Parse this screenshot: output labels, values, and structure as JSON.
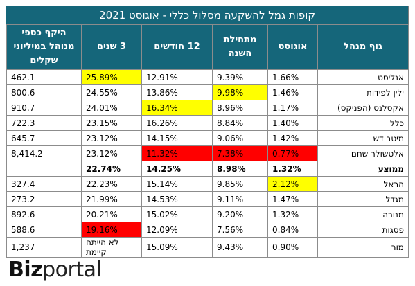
{
  "chart_data": {
    "type": "table",
    "title": "קופות גמל להשקעה מסלול כללי - אוגוסט 2021",
    "columns": [
      "גוף מנהל",
      "אוגוסט",
      "מתחילת השנה",
      "12 חודשים",
      "3 שנים",
      "היקף כספי מנוהל במיליוני שקלים"
    ],
    "rows": [
      {
        "name": "אנליסט",
        "aug": "1.66%",
        "ytd": "9.39%",
        "m12": "12.91%",
        "y3": "25.89%",
        "aum": "462.1",
        "hl": {
          "y3": "yellow"
        }
      },
      {
        "name": "ילין לפידות",
        "aug": "1.46%",
        "ytd": "9.98%",
        "m12": "13.86%",
        "y3": "24.55%",
        "aum": "800.6",
        "hl": {
          "ytd": "yellow"
        }
      },
      {
        "name": "אקסלנס (הפניקס)",
        "aug": "1.17%",
        "ytd": "8.96%",
        "m12": "16.34%",
        "y3": "24.01%",
        "aum": "910.7",
        "hl": {
          "m12": "yellow"
        }
      },
      {
        "name": "כלל",
        "aug": "1.40%",
        "ytd": "8.84%",
        "m12": "16.26%",
        "y3": "23.15%",
        "aum": "722.3",
        "hl": {}
      },
      {
        "name": "מיטב דש",
        "aug": "1.42%",
        "ytd": "9.06%",
        "m12": "14.15%",
        "y3": "23.12%",
        "aum": "645.7",
        "hl": {}
      },
      {
        "name": "אלטשולר שחם",
        "aug": "0.77%",
        "ytd": "7.38%",
        "m12": "11.32%",
        "y3": "23.12%",
        "aum": "8,414.2",
        "hl": {
          "aug": "red",
          "ytd": "red",
          "m12": "red"
        }
      },
      {
        "name": "ממוצע",
        "aug": "1.32%",
        "ytd": "8.98%",
        "m12": "14.25%",
        "y3": "22.74%",
        "aum": "",
        "bold": true,
        "hl": {}
      },
      {
        "name": "הראל",
        "aug": "2.12%",
        "ytd": "9.85%",
        "m12": "15.14%",
        "y3": "22.23%",
        "aum": "327.4",
        "hl": {
          "aug": "yellow"
        }
      },
      {
        "name": "מגדל",
        "aug": "1.47%",
        "ytd": "9.11%",
        "m12": "14.53%",
        "y3": "21.99%",
        "aum": "273.2",
        "hl": {}
      },
      {
        "name": "מנורה",
        "aug": "1.32%",
        "ytd": "9.20%",
        "m12": "15.02%",
        "y3": "20.21%",
        "aum": "892.6",
        "hl": {}
      },
      {
        "name": "פסגות",
        "aug": "0.84%",
        "ytd": "7.56%",
        "m12": "12.09%",
        "y3": "19.16%",
        "aum": "588.6",
        "hl": {
          "y3": "red"
        }
      },
      {
        "name": "מור",
        "aug": "0.90%",
        "ytd": "9.43%",
        "m12": "15.09%",
        "y3": "לא הייתה קיימת",
        "aum": "1,237",
        "hl": {}
      }
    ]
  },
  "header": {
    "manager": "גוף מנהל",
    "aug": "אוגוסט",
    "ytd": "מתחילת השנה",
    "m12": "12 חודשים",
    "y3": "3 שנים",
    "aum": "היקף כספי מנוהל במיליוני שקלים"
  },
  "logo": {
    "part1": "Biz",
    "part2": "portal"
  },
  "colors": {
    "header_bg": "#15667a",
    "highlight_best": "#ffff00",
    "highlight_worst": "#ff0000"
  }
}
